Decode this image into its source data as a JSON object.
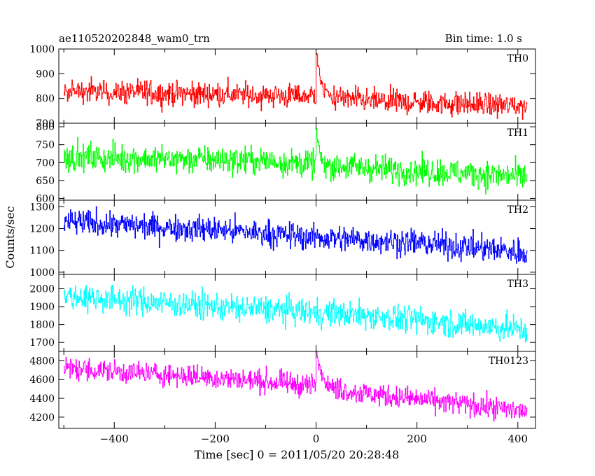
{
  "header": {
    "title": "ae110520202848_wam0_trn",
    "bin_time": "Bin time: 1.0 s"
  },
  "chart_data": {
    "type": "line",
    "title": "ae110520202848_wam0_trn",
    "subtitle": "Bin time: 1.0 s",
    "xlabel": "Time [sec] 0 = 2011/05/20 20:28:48",
    "ylabel": "Counts/sec",
    "xlim": [
      -510,
      435
    ],
    "x_start": -500,
    "x_end": 418,
    "x_ticks": [
      -400,
      -200,
      0,
      200,
      400
    ],
    "grid": false,
    "panels": [
      {
        "name": "TH0",
        "color": "#ff0000",
        "ylim": [
          700,
          1000
        ],
        "y_ticks": [
          700,
          800,
          900,
          1000
        ],
        "trend": [
          [
            -500,
            830
          ],
          [
            -50,
            810
          ],
          [
            0,
            812
          ],
          [
            100,
            790
          ],
          [
            418,
            770
          ]
        ],
        "noise": 45,
        "spike": {
          "x": 1,
          "peak": 980,
          "decay": 8
        }
      },
      {
        "name": "TH1",
        "color": "#00ff00",
        "ylim": [
          595,
          810
        ],
        "y_ticks": [
          600,
          650,
          700,
          750,
          800
        ],
        "trend": [
          [
            -500,
            715
          ],
          [
            -100,
            705
          ],
          [
            100,
            685
          ],
          [
            418,
            660
          ]
        ],
        "noise": 35,
        "spike": {
          "x": 1,
          "peak": 790,
          "decay": 5
        }
      },
      {
        "name": "TH2",
        "color": "#0000ff",
        "ylim": [
          990,
          1330
        ],
        "y_ticks": [
          1000,
          1100,
          1200,
          1300
        ],
        "trend": [
          [
            -500,
            1230
          ],
          [
            -200,
            1195
          ],
          [
            0,
            1160
          ],
          [
            200,
            1135
          ],
          [
            418,
            1090
          ]
        ],
        "noise": 55,
        "spike": null
      },
      {
        "name": "TH3",
        "color": "#00ffff",
        "ylim": [
          1650,
          2080
        ],
        "y_ticks": [
          1700,
          1800,
          1900,
          2000
        ],
        "trend": [
          [
            -500,
            1960
          ],
          [
            -200,
            1900
          ],
          [
            100,
            1850
          ],
          [
            418,
            1770
          ]
        ],
        "noise": 70,
        "spike": null
      },
      {
        "name": "TH0123",
        "color": "#ff00ff",
        "ylim": [
          4080,
          4900
        ],
        "y_ticks": [
          4200,
          4400,
          4600,
          4800
        ],
        "trend": [
          [
            -500,
            4720
          ],
          [
            -200,
            4620
          ],
          [
            -10,
            4540
          ],
          [
            100,
            4450
          ],
          [
            418,
            4260
          ]
        ],
        "noise": 110,
        "spike": {
          "x": 1,
          "peak": 4880,
          "decay": 10
        }
      }
    ]
  }
}
